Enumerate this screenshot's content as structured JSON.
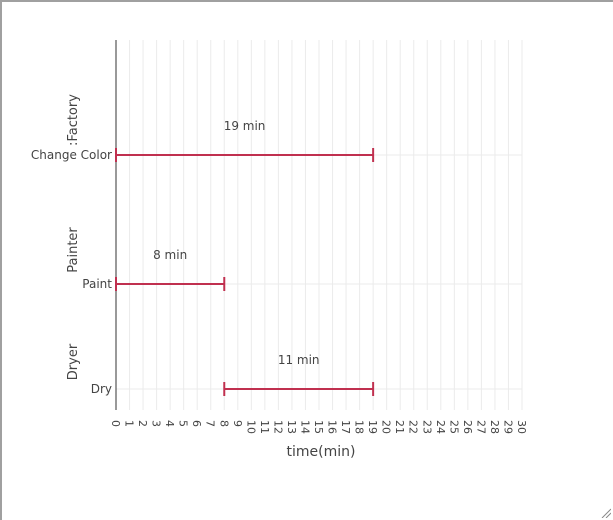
{
  "chart_data": {
    "type": "gantt",
    "xlabel": "time(min)",
    "ylabel": "",
    "xlim": [
      0,
      30
    ],
    "x_ticks": [
      0,
      1,
      2,
      3,
      4,
      5,
      6,
      7,
      8,
      9,
      10,
      11,
      12,
      13,
      14,
      15,
      16,
      17,
      18,
      19,
      20,
      21,
      22,
      23,
      24,
      25,
      26,
      27,
      28,
      29,
      30
    ],
    "grid": true,
    "bar_color": "#c0304f",
    "groups": [
      {
        "name": ":Factory",
        "tasks": [
          {
            "name": "Change Color",
            "start": 0,
            "end": 19,
            "label": "19 min"
          }
        ]
      },
      {
        "name": "Painter",
        "tasks": [
          {
            "name": "Paint",
            "start": 0,
            "end": 8,
            "label": "8 min"
          }
        ]
      },
      {
        "name": "Dryer",
        "tasks": [
          {
            "name": "Dry",
            "start": 8,
            "end": 19,
            "label": "11 min"
          }
        ]
      }
    ]
  }
}
